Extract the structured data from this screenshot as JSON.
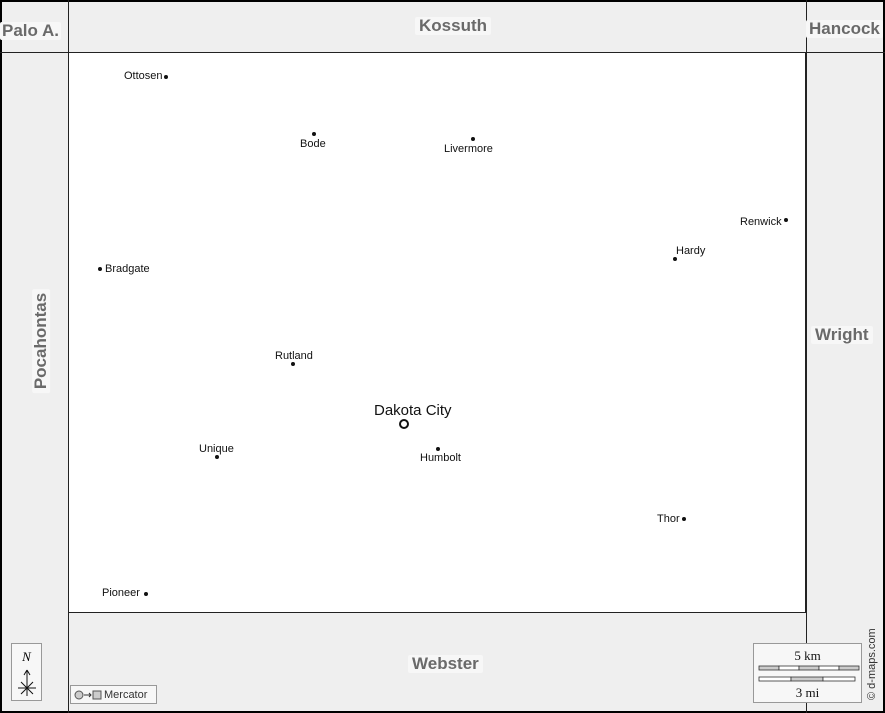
{
  "neighbors": {
    "north": "Kossuth",
    "northwest": "Palo A.",
    "northeast": "Hancock",
    "west": "Pocahontas",
    "east": "Wright",
    "south": "Webster"
  },
  "seat": "Dakota City",
  "towns": [
    "Ottosen",
    "Bode",
    "Livermore",
    "Renwick",
    "Hardy",
    "Bradgate",
    "Rutland",
    "Unique",
    "Humbolt",
    "Thor",
    "Pioneer"
  ],
  "compass": {
    "label": "N"
  },
  "projection": {
    "label": "Mercator",
    "icon": "circle-to-square-icon"
  },
  "scale": {
    "km": "5 km",
    "mi": "3 mi"
  },
  "credit": "© d-maps.com",
  "colors": {
    "outside": "#efefef",
    "county": "#ffffff",
    "label": "#6a6a6a"
  }
}
